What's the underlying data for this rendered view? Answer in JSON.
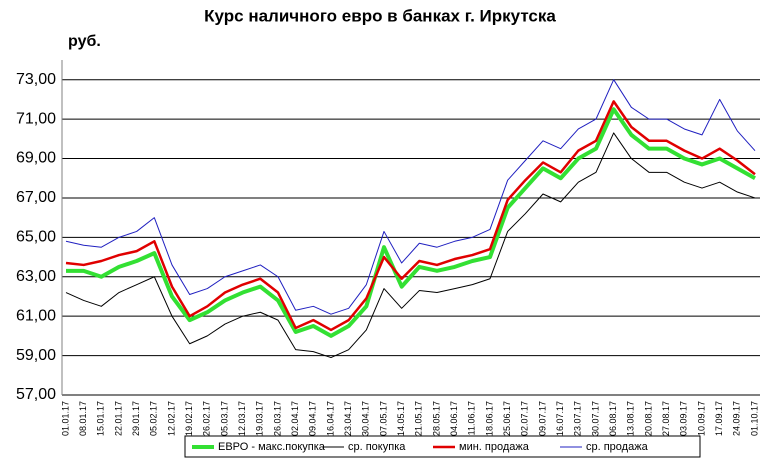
{
  "chart_data": {
    "type": "line",
    "title": "Курс наличного евро в банках г. Иркутска",
    "y_label": "руб.",
    "categories": [
      "01.01.17",
      "08.01.17",
      "15.01.17",
      "22.01.17",
      "29.01.17",
      "05.02.17",
      "12.02.17",
      "19.02.17",
      "26.02.17",
      "05.03.17",
      "12.03.17",
      "19.03.17",
      "26.03.17",
      "02.04.17",
      "09.04.17",
      "16.04.17",
      "23.04.17",
      "30.04.17",
      "07.05.17",
      "14.05.17",
      "21.05.17",
      "28.05.17",
      "04.06.17",
      "11.06.17",
      "18.06.17",
      "25.06.17",
      "02.07.17",
      "09.07.17",
      "16.07.17",
      "23.07.17",
      "30.07.17",
      "06.08.17",
      "13.08.17",
      "20.08.17",
      "27.08.17",
      "03.09.17",
      "10.09.17",
      "17.09.17",
      "24.09.17",
      "01.10.17"
    ],
    "series": [
      {
        "name": "ЕВРО - макс.покупка",
        "color": "#33e033",
        "width": 4,
        "values": [
          63.3,
          63.3,
          63.0,
          63.5,
          63.8,
          64.2,
          62.0,
          60.8,
          61.2,
          61.8,
          62.2,
          62.5,
          61.8,
          60.2,
          60.5,
          60.0,
          60.5,
          61.5,
          64.5,
          62.5,
          63.5,
          63.3,
          63.5,
          63.8,
          64.0,
          66.5,
          67.5,
          68.5,
          68.0,
          69.0,
          69.5,
          71.5,
          70.2,
          69.5,
          69.5,
          69.0,
          68.7,
          69.0,
          68.5,
          68.0
        ]
      },
      {
        "name": "ср. покупка",
        "color": "#000000",
        "width": 1,
        "values": [
          62.2,
          61.8,
          61.5,
          62.2,
          62.6,
          63.0,
          61.0,
          59.6,
          60.0,
          60.6,
          61.0,
          61.2,
          60.8,
          59.3,
          59.2,
          58.9,
          59.3,
          60.3,
          62.4,
          61.4,
          62.3,
          62.2,
          62.4,
          62.6,
          62.9,
          65.3,
          66.2,
          67.2,
          66.8,
          67.8,
          68.3,
          70.3,
          69.0,
          68.3,
          68.3,
          67.8,
          67.5,
          67.8,
          67.3,
          67.0
        ]
      },
      {
        "name": "мин. продажа",
        "color": "#e00000",
        "width": 2.5,
        "values": [
          63.7,
          63.6,
          63.8,
          64.1,
          64.3,
          64.8,
          62.5,
          61.0,
          61.5,
          62.2,
          62.6,
          62.9,
          62.2,
          60.4,
          60.8,
          60.3,
          60.8,
          61.9,
          64.0,
          62.9,
          63.8,
          63.6,
          63.9,
          64.1,
          64.4,
          66.9,
          67.9,
          68.8,
          68.3,
          69.4,
          69.9,
          71.9,
          70.6,
          69.9,
          69.9,
          69.4,
          69.0,
          69.5,
          68.9,
          68.2
        ]
      },
      {
        "name": "ср. продажа",
        "color": "#2020c0",
        "width": 1,
        "values": [
          64.8,
          64.6,
          64.5,
          65.0,
          65.3,
          66.0,
          63.6,
          62.1,
          62.4,
          63.0,
          63.3,
          63.6,
          63.0,
          61.3,
          61.5,
          61.1,
          61.4,
          62.6,
          65.3,
          63.7,
          64.7,
          64.5,
          64.8,
          65.0,
          65.4,
          67.9,
          68.9,
          69.9,
          69.5,
          70.5,
          71.0,
          73.0,
          71.6,
          71.0,
          71.0,
          70.5,
          70.2,
          72.0,
          70.4,
          69.4
        ]
      }
    ],
    "ylim": [
      57,
      74
    ],
    "yticks": [
      {
        "value": 57,
        "label": "57,00"
      },
      {
        "value": 59,
        "label": "59,00"
      },
      {
        "value": 61,
        "label": "61,00"
      },
      {
        "value": 63,
        "label": "63,00"
      },
      {
        "value": 65,
        "label": "65,00"
      },
      {
        "value": 67,
        "label": "67,00"
      },
      {
        "value": 69,
        "label": "69,00"
      },
      {
        "value": 71,
        "label": "71,00"
      },
      {
        "value": 73,
        "label": "73,00"
      }
    ],
    "grid": true
  }
}
